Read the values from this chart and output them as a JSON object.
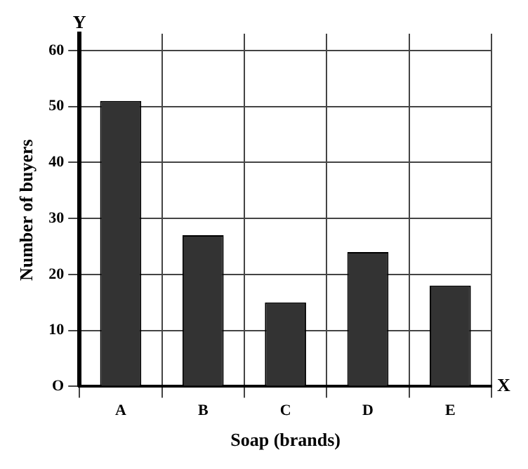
{
  "chart_data": {
    "type": "bar",
    "xlabel": "Soap (brands)",
    "ylabel": "Number of buyers",
    "categories": [
      "A",
      "B",
      "C",
      "D",
      "E"
    ],
    "values": [
      51,
      27,
      15,
      24,
      18
    ],
    "color": "#333333",
    "ylim": [
      0,
      63
    ],
    "yticks": [
      {
        "value": 0,
        "label": "O"
      },
      10,
      20,
      30,
      40,
      50,
      60
    ],
    "grid": true,
    "annotations": [
      "Y",
      "X"
    ]
  }
}
